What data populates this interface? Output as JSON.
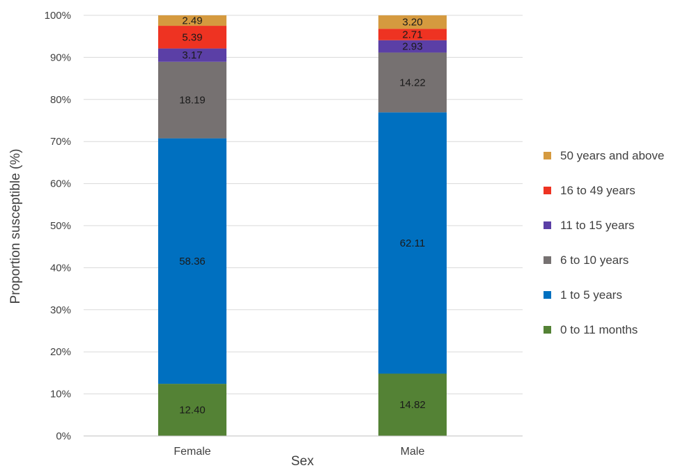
{
  "chart_data": {
    "type": "bar",
    "stacked": true,
    "categories": [
      "Female",
      "Male"
    ],
    "xlabel": "Sex",
    "ylabel": "Proportion susceptible (%)",
    "ylim": [
      0,
      100
    ],
    "yticks": [
      "0%",
      "10%",
      "20%",
      "30%",
      "40%",
      "50%",
      "60%",
      "70%",
      "80%",
      "90%",
      "100%"
    ],
    "grid": true,
    "legend_position": "right",
    "series": [
      {
        "name": "0 to 11 months",
        "color": "#548235",
        "values": [
          12.4,
          14.82
        ],
        "labels": [
          "12.40",
          "14.82"
        ]
      },
      {
        "name": "1 to 5 years",
        "color": "#0070C0",
        "values": [
          58.36,
          62.11
        ],
        "labels": [
          "58.36",
          "62.11"
        ]
      },
      {
        "name": "6 to 10 years",
        "color": "#767171",
        "values": [
          18.19,
          14.22
        ],
        "labels": [
          "18.19",
          "14.22"
        ]
      },
      {
        "name": "11 to 15 years",
        "color": "#5B3FA6",
        "values": [
          3.17,
          2.93
        ],
        "labels": [
          "3.17",
          "2.93"
        ]
      },
      {
        "name": "16 to 49 years",
        "color": "#EE3322",
        "values": [
          5.39,
          2.71
        ],
        "labels": [
          "5.39",
          "2.71"
        ]
      },
      {
        "name": "50 years and above",
        "color": "#D59A3F",
        "values": [
          2.49,
          3.2
        ],
        "labels": [
          "2.49",
          "3.20"
        ]
      }
    ]
  }
}
